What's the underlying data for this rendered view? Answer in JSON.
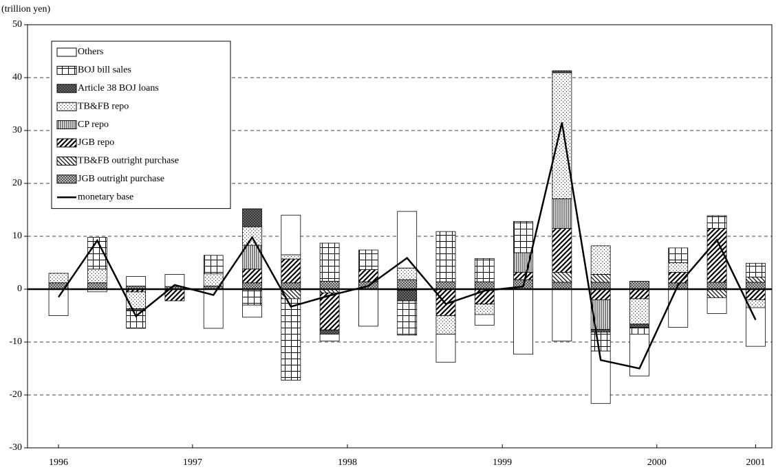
{
  "chart_data": {
    "type": "bar",
    "stacked": true,
    "y_label": "(trillion yen)",
    "x": [
      0,
      1,
      2,
      3,
      4,
      5,
      6,
      7,
      8,
      9,
      10,
      11,
      12,
      13,
      14,
      15,
      16,
      17,
      18
    ],
    "xlim": [
      -0.8,
      18.42
    ],
    "xticks": [
      {
        "value": 0,
        "label": "1996"
      },
      {
        "value": 3.46,
        "label": "1997"
      },
      {
        "value": 7.46,
        "label": "1998"
      },
      {
        "value": 11.46,
        "label": "1999"
      },
      {
        "value": 15.45,
        "label": "2000"
      },
      {
        "value": 18,
        "label": "2001"
      }
    ],
    "ylim": [
      -30,
      50
    ],
    "yticks": [
      -30,
      -20,
      -10,
      0,
      10,
      20,
      30,
      40,
      50
    ],
    "grid": true,
    "legend": "upper left",
    "series": [
      {
        "name": "JGB outright purchase",
        "color": "#000000",
        "pattern": "checker",
        "values": [
          1.2,
          1.2,
          0.6,
          0.5,
          0.6,
          1.2,
          1.2,
          1.5,
          1.4,
          1.8,
          1.4,
          1.4,
          1.8,
          1.3,
          1.3,
          1.5,
          1.2,
          1.3,
          1.3
        ]
      },
      {
        "name": "TB&FB outright purchase",
        "color": "#000000",
        "pattern": "back-diagonal",
        "values": [
          0,
          0,
          0,
          0,
          0,
          0,
          -1.8,
          -0.7,
          0,
          -0.2,
          0,
          0,
          0,
          1.9,
          1.5,
          0,
          0,
          -1.6,
          1
        ]
      },
      {
        "name": "JGB repo",
        "color": "#000000",
        "pattern": "diagonal",
        "values": [
          0,
          0,
          -0.5,
          -2.2,
          0,
          2.6,
          4.5,
          -7,
          2.3,
          0,
          -5,
          -2.8,
          1.4,
          8.3,
          -2,
          -1.8,
          2,
          10.2,
          -2
        ]
      },
      {
        "name": "CP repo",
        "color": "#000000",
        "pattern": "vertical",
        "values": [
          0,
          0,
          0,
          0,
          0,
          4.5,
          0,
          0,
          0,
          0,
          0,
          0,
          3.7,
          5.6,
          -5.6,
          0,
          0,
          0,
          0
        ]
      },
      {
        "name": "TB&FB repo",
        "color": "#000000",
        "pattern": "dots",
        "values": [
          1.8,
          2.6,
          -3.2,
          0,
          2.3,
          3.5,
          0.8,
          0,
          0,
          2.2,
          -3.5,
          -2,
          0,
          23.8,
          5.4,
          -4.8,
          1.8,
          0,
          -1.5
        ]
      },
      {
        "name": "Article 38 BOJ loans",
        "color": "#000000",
        "pattern": "crosshatch-dark",
        "values": [
          0,
          0,
          -0.4,
          0,
          0,
          3.4,
          0,
          -0.8,
          0,
          -2,
          0,
          0,
          0,
          0.4,
          -0.5,
          -0.6,
          0,
          0,
          0
        ]
      },
      {
        "name": "BOJ bill sales",
        "color": "#000000",
        "pattern": "grid",
        "values": [
          0,
          6,
          -3.3,
          0,
          3.5,
          -3,
          -15.4,
          7.2,
          3.7,
          -6.5,
          9.5,
          4.4,
          5.9,
          0,
          -3.6,
          -1.3,
          2.8,
          2.4,
          2.6
        ]
      },
      {
        "name": "Others",
        "color": "#000000",
        "pattern": "blank",
        "values": [
          -5,
          -0.5,
          1.8,
          2.3,
          -7.4,
          -2.3,
          7.5,
          -1.3,
          -7,
          10.7,
          -5.3,
          -2,
          -12.3,
          -9.8,
          -9.9,
          -7.9,
          -7.2,
          -3,
          -7.3
        ]
      }
    ],
    "line": {
      "name": "monetary base",
      "color": "#000000",
      "values": [
        -1.5,
        9.2,
        -5.1,
        0.8,
        -1.1,
        9.8,
        -3.3,
        -1.2,
        0.6,
        5.9,
        -2.8,
        -0.3,
        0.5,
        31.5,
        -13.4,
        -15,
        0.8,
        9.3,
        -5.8
      ]
    }
  }
}
